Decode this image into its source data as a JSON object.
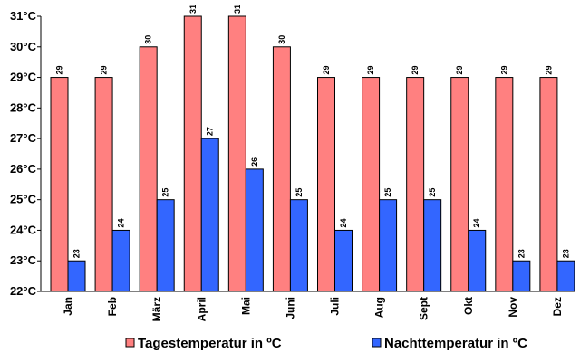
{
  "chart_data": {
    "type": "bar",
    "categories": [
      "Jan",
      "Feb",
      "März",
      "April",
      "Mai",
      "Juni",
      "Juli",
      "Aug",
      "Sept",
      "Okt",
      "Nov",
      "Dez"
    ],
    "series": [
      {
        "name": "Tagestemperatur in ºC",
        "color": "#ff8080",
        "values": [
          29,
          29,
          30,
          31,
          31,
          30,
          29,
          29,
          29,
          29,
          29,
          29
        ]
      },
      {
        "name": "Nachttemperatur in ºC",
        "color": "#3366ff",
        "values": [
          23,
          24,
          25,
          27,
          26,
          25,
          24,
          25,
          25,
          24,
          23,
          23
        ]
      }
    ],
    "ylim": [
      22,
      31
    ],
    "yticks": [
      22,
      23,
      24,
      25,
      26,
      27,
      28,
      29,
      30,
      31
    ],
    "ytick_labels": [
      "22°C",
      "23°C",
      "24°C",
      "25°C",
      "26°C",
      "27°C",
      "28°C",
      "29°C",
      "30°C",
      "31°C"
    ],
    "legend_position": "bottom",
    "grid": false
  }
}
